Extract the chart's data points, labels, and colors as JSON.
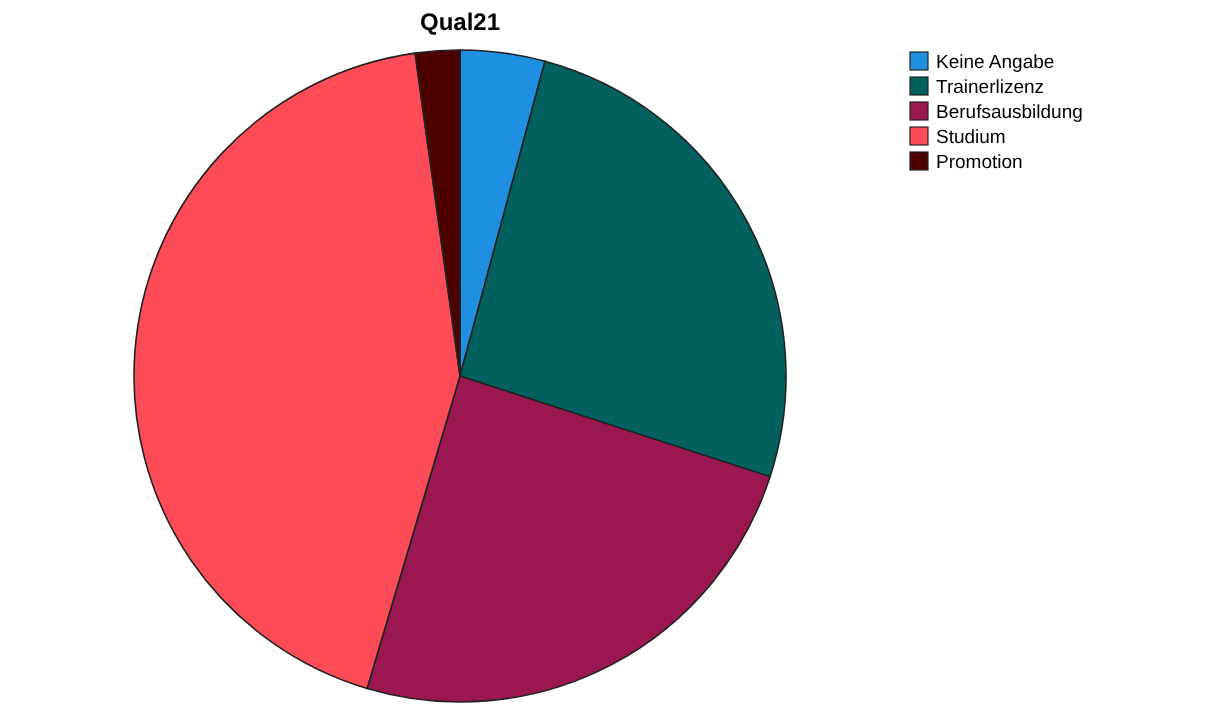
{
  "chart_data": {
    "type": "pie",
    "title": "Qual21",
    "categories": [
      "Keine Angabe",
      "Trainerlizenz",
      "Berufsausbildung",
      "Studium",
      "Promotion"
    ],
    "values": [
      4.2,
      25.8,
      24.6,
      43.2,
      2.2
    ],
    "colors": [
      "#1e8fe1",
      "#02605e",
      "#9b1750",
      "#fd4b57",
      "#4d0000"
    ],
    "legend": "top right"
  }
}
